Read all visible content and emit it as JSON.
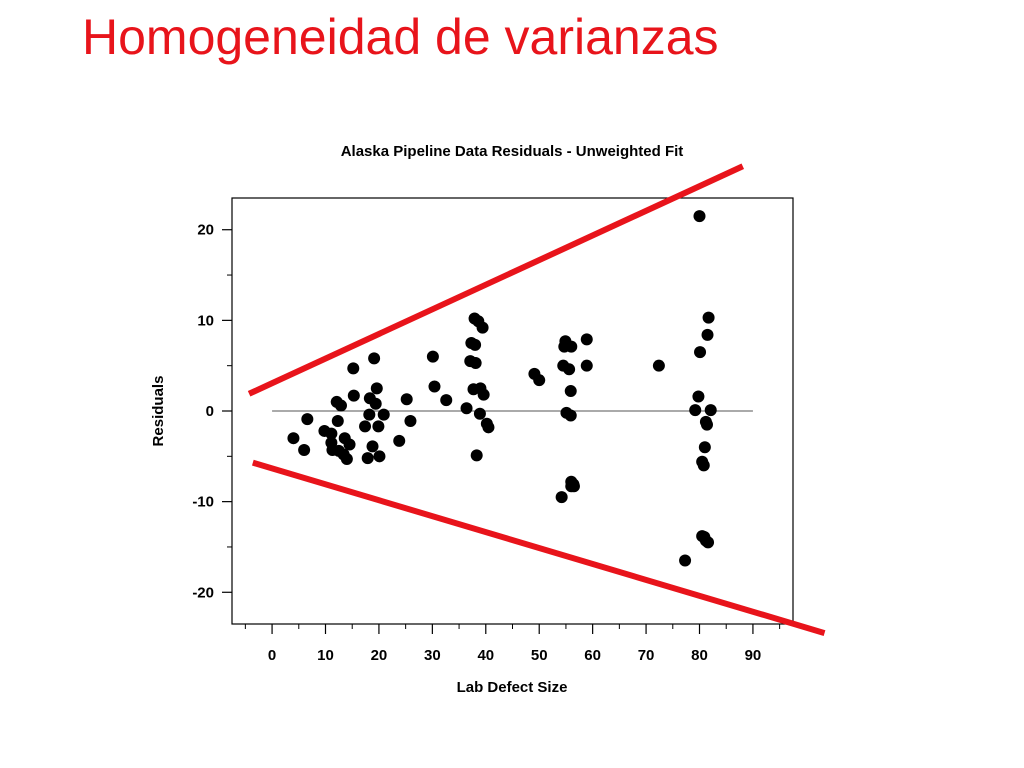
{
  "slide": {
    "title": "Homogeneidad de varianzas"
  },
  "chart_data": {
    "type": "scatter",
    "title": "Alaska Pipeline Data Residuals - Unweighted Fit",
    "xlabel": "Lab Defect Size",
    "ylabel": "Residuals",
    "xlim": [
      -7.5,
      97.5
    ],
    "ylim": [
      -23.5,
      23.5
    ],
    "xticks": [
      0,
      10,
      20,
      30,
      40,
      50,
      60,
      70,
      80,
      90
    ],
    "yticks": [
      20,
      10,
      0,
      -10,
      -20
    ],
    "reference_line": {
      "y": 0,
      "x_from": 0,
      "x_to": 90
    },
    "grid": false,
    "legend": "none",
    "point_color": "#000000",
    "annotation_color": "#e8141b",
    "annotation_lines": [
      {
        "x": [
          -4.3,
          88.1
        ],
        "y": [
          1.9,
          27.0
        ]
      },
      {
        "x": [
          -3.6,
          103.4
        ],
        "y": [
          -5.7,
          -24.5
        ]
      }
    ],
    "points": [
      [
        4.0,
        -3.0
      ],
      [
        6.0,
        -4.3
      ],
      [
        6.6,
        -0.9
      ],
      [
        9.8,
        -2.2
      ],
      [
        11.1,
        -2.5
      ],
      [
        11.1,
        -3.5
      ],
      [
        11.3,
        -4.3
      ],
      [
        12.1,
        1.0
      ],
      [
        12.3,
        -1.1
      ],
      [
        12.5,
        -4.4
      ],
      [
        12.9,
        0.6
      ],
      [
        13.4,
        -4.8
      ],
      [
        13.6,
        -3.0
      ],
      [
        14.0,
        -5.3
      ],
      [
        14.5,
        -3.7
      ],
      [
        15.2,
        4.7
      ],
      [
        15.3,
        1.7
      ],
      [
        17.4,
        -1.7
      ],
      [
        17.9,
        -5.2
      ],
      [
        18.2,
        -0.4
      ],
      [
        18.3,
        1.4
      ],
      [
        18.8,
        -3.9
      ],
      [
        19.1,
        5.8
      ],
      [
        19.4,
        0.8
      ],
      [
        19.6,
        2.5
      ],
      [
        19.9,
        -1.7
      ],
      [
        20.1,
        -5.0
      ],
      [
        20.9,
        -0.4
      ],
      [
        23.8,
        -3.3
      ],
      [
        25.2,
        1.3
      ],
      [
        25.9,
        -1.1
      ],
      [
        30.1,
        6.0
      ],
      [
        30.4,
        2.7
      ],
      [
        32.6,
        1.2
      ],
      [
        36.4,
        0.3
      ],
      [
        37.1,
        5.5
      ],
      [
        37.3,
        7.5
      ],
      [
        37.7,
        2.4
      ],
      [
        37.9,
        10.2
      ],
      [
        38.0,
        7.3
      ],
      [
        38.1,
        5.3
      ],
      [
        38.3,
        -4.9
      ],
      [
        38.6,
        9.9
      ],
      [
        38.9,
        -0.3
      ],
      [
        39.0,
        2.5
      ],
      [
        39.4,
        9.2
      ],
      [
        39.6,
        1.8
      ],
      [
        40.2,
        -1.4
      ],
      [
        40.5,
        -1.8
      ],
      [
        49.1,
        4.1
      ],
      [
        50.0,
        3.4
      ],
      [
        54.2,
        -9.5
      ],
      [
        54.5,
        5.0
      ],
      [
        54.7,
        7.1
      ],
      [
        54.9,
        7.7
      ],
      [
        55.1,
        -0.2
      ],
      [
        55.6,
        4.6
      ],
      [
        55.9,
        -0.5
      ],
      [
        55.9,
        2.2
      ],
      [
        56.0,
        -8.3
      ],
      [
        56.0,
        -7.8
      ],
      [
        56.0,
        7.1
      ],
      [
        56.4,
        -8.1
      ],
      [
        56.5,
        -8.3
      ],
      [
        58.9,
        7.9
      ],
      [
        58.9,
        5.0
      ],
      [
        72.4,
        5.0
      ],
      [
        77.3,
        -16.5
      ],
      [
        79.2,
        0.1
      ],
      [
        79.8,
        1.6
      ],
      [
        80.0,
        21.5
      ],
      [
        80.1,
        6.5
      ],
      [
        80.5,
        -5.6
      ],
      [
        80.5,
        -13.8
      ],
      [
        80.8,
        -6.0
      ],
      [
        80.9,
        -13.9
      ],
      [
        81.0,
        -4.0
      ],
      [
        81.2,
        -1.2
      ],
      [
        81.2,
        -14.3
      ],
      [
        81.4,
        -1.5
      ],
      [
        81.5,
        8.4
      ],
      [
        81.6,
        -14.5
      ],
      [
        81.7,
        10.3
      ],
      [
        82.1,
        0.1
      ]
    ]
  }
}
